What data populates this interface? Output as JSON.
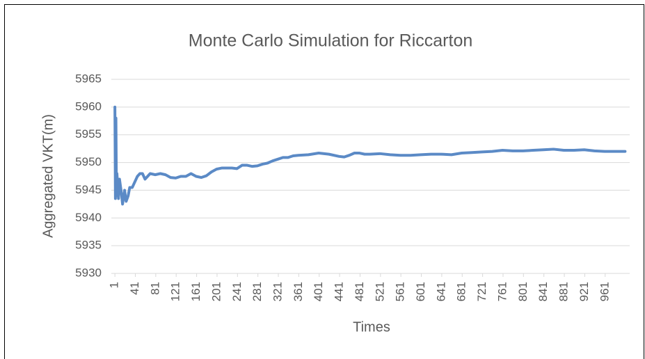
{
  "chart_data": {
    "type": "line",
    "title": "Monte Carlo Simulation for Riccarton",
    "x_label": "Times",
    "y_label": "Aggregated VKT(m)",
    "x": [
      1,
      2,
      3,
      4,
      5,
      8,
      10,
      13,
      16,
      20,
      23,
      27,
      30,
      35,
      40,
      45,
      50,
      55,
      60,
      65,
      70,
      80,
      90,
      100,
      110,
      120,
      130,
      140,
      150,
      160,
      170,
      180,
      190,
      200,
      210,
      220,
      230,
      240,
      250,
      260,
      270,
      280,
      290,
      300,
      310,
      320,
      330,
      340,
      350,
      360,
      380,
      400,
      420,
      440,
      450,
      460,
      470,
      480,
      490,
      500,
      520,
      540,
      560,
      580,
      600,
      620,
      640,
      660,
      680,
      700,
      720,
      740,
      760,
      780,
      800,
      820,
      840,
      860,
      880,
      900,
      920,
      940,
      960,
      980,
      1000
    ],
    "series": [
      {
        "name": "VKT",
        "color": "#5b8ac6",
        "values": [
          5960,
          5943.5,
          5958,
          5944,
          5948,
          5943.5,
          5947,
          5945,
          5942.5,
          5945,
          5943,
          5944,
          5945.5,
          5945.5,
          5946.5,
          5947.5,
          5948,
          5948,
          5947,
          5947.5,
          5948,
          5947.8,
          5948,
          5947.8,
          5947.3,
          5947.2,
          5947.5,
          5947.5,
          5948,
          5947.5,
          5947.3,
          5947.6,
          5948.3,
          5948.8,
          5949,
          5949,
          5949,
          5948.9,
          5949.5,
          5949.5,
          5949.3,
          5949.4,
          5949.7,
          5949.9,
          5950.3,
          5950.6,
          5950.9,
          5950.9,
          5951.2,
          5951.3,
          5951.4,
          5951.7,
          5951.5,
          5951.1,
          5951,
          5951.3,
          5951.7,
          5951.7,
          5951.5,
          5951.5,
          5951.6,
          5951.4,
          5951.3,
          5951.3,
          5951.4,
          5951.5,
          5951.5,
          5951.4,
          5951.7,
          5951.8,
          5951.9,
          5952,
          5952.2,
          5952.1,
          5952.1,
          5952.2,
          5952.3,
          5952.4,
          5952.2,
          5952.2,
          5952.3,
          5952.1,
          5952,
          5952,
          5952
        ]
      }
    ],
    "xlim": [
      -6,
      1009
    ],
    "xticks": [
      1,
      41,
      81,
      121,
      161,
      201,
      241,
      281,
      321,
      361,
      401,
      441,
      481,
      521,
      561,
      601,
      641,
      681,
      721,
      761,
      801,
      841,
      881,
      921,
      961
    ],
    "ylim": [
      5930,
      5965
    ],
    "yticks": [
      5930,
      5935,
      5940,
      5945,
      5950,
      5955,
      5960,
      5965
    ],
    "grid": true
  }
}
